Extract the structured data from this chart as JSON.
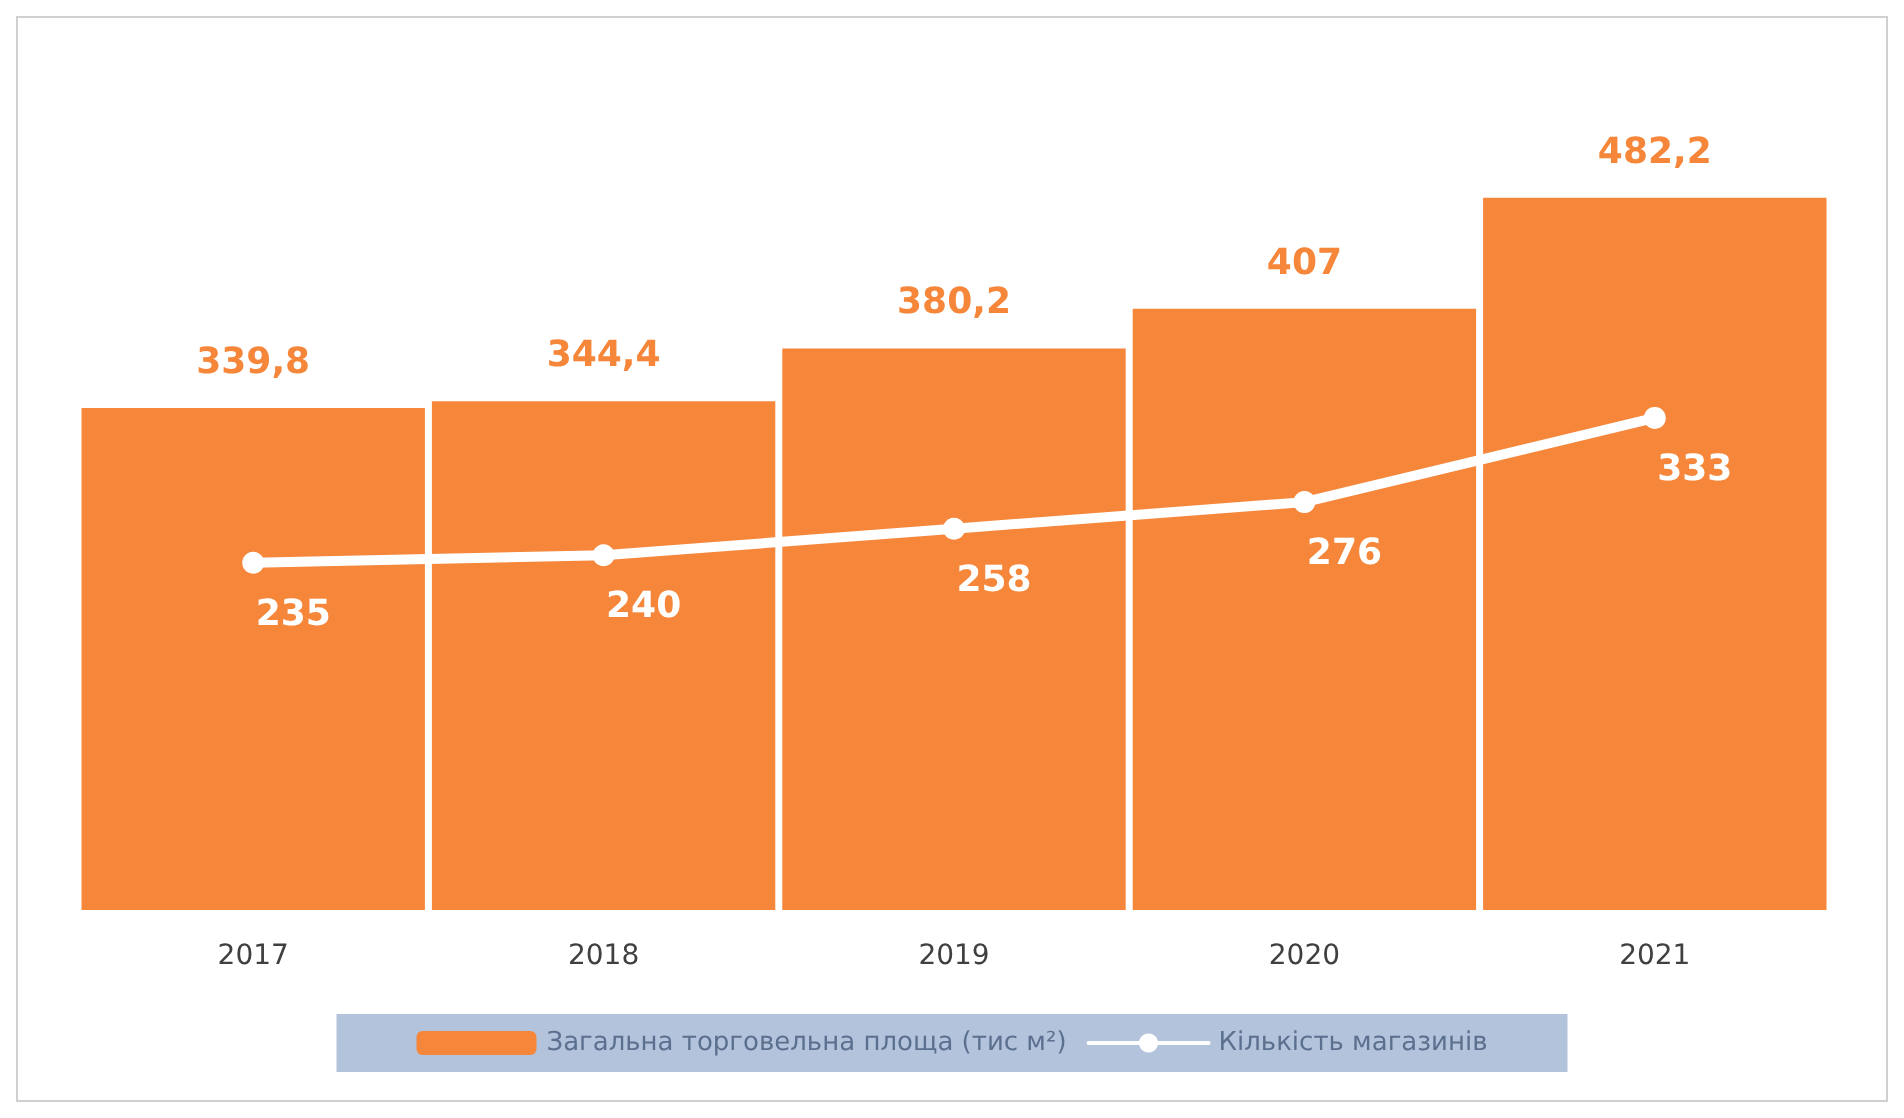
{
  "chart_data": {
    "type": "bar",
    "categories": [
      "2017",
      "2018",
      "2019",
      "2020",
      "2021"
    ],
    "series": [
      {
        "name": "Загальна торговельна площа (тис м²)",
        "color": "#f5863a",
        "values": [
          339.8,
          344.4,
          380.2,
          407,
          482.2
        ],
        "value_labels": [
          "339,8",
          "344,4",
          "380,2",
          "407",
          "482,2"
        ]
      },
      {
        "name": "Кількість магазинів",
        "type": "line",
        "axis": "y2",
        "color": "#ffffff",
        "values": [
          235,
          240,
          258,
          276,
          333
        ],
        "value_labels": [
          "235",
          "240",
          "258",
          "276",
          "333"
        ]
      }
    ],
    "tick_labels": "x",
    "grid": false,
    "legend": "bottom",
    "marker": "circle",
    "line_style": "solid"
  }
}
